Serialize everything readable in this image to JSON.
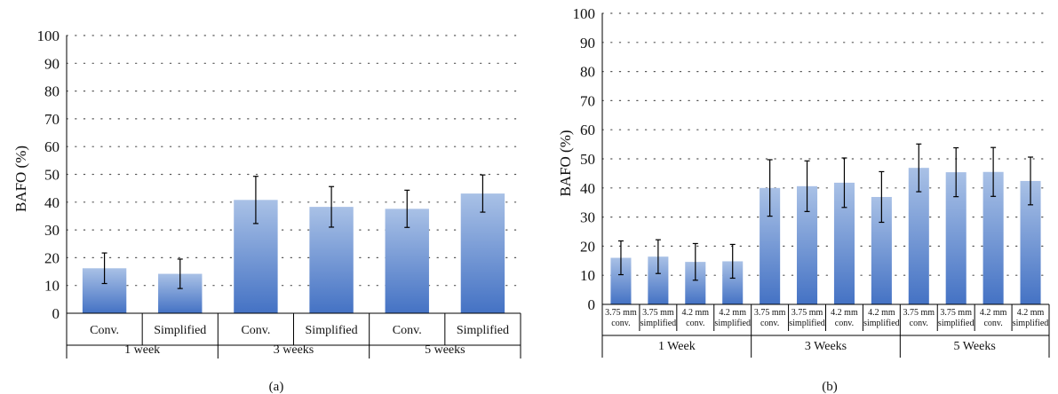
{
  "colors": {
    "bar_top": "#a9c1e6",
    "bar_bottom": "#4472c4",
    "axis": "#000000",
    "grid": "#555555"
  },
  "chart_data": [
    {
      "type": "bar",
      "panel_label": "(a)",
      "ylabel": "BAFO (%)",
      "ylim": [
        0,
        100
      ],
      "yticks": [
        0,
        10,
        20,
        30,
        40,
        50,
        60,
        70,
        80,
        90,
        100
      ],
      "grid": "dotted horizontal",
      "groups": [
        {
          "label": "1 week",
          "size": 2
        },
        {
          "label": "3 weeks",
          "size": 2
        },
        {
          "label": "5 weeks",
          "size": 2
        }
      ],
      "categories": [
        "Conv.",
        "Simplified",
        "Conv.",
        "Simplified",
        "Conv.",
        "Simplified"
      ],
      "values": [
        16.2,
        14.2,
        40.8,
        38.3,
        37.6,
        43.1
      ],
      "errors": [
        5.5,
        5.3,
        8.5,
        7.3,
        6.7,
        6.7
      ]
    },
    {
      "type": "bar",
      "panel_label": "(b)",
      "ylabel": "BAFO (%)",
      "ylim": [
        0,
        100
      ],
      "yticks": [
        0,
        10,
        20,
        30,
        40,
        50,
        60,
        70,
        80,
        90,
        100
      ],
      "grid": "dotted horizontal",
      "groups": [
        {
          "label": "1 Week",
          "size": 4
        },
        {
          "label": "3 Weeks",
          "size": 4
        },
        {
          "label": "5 Weeks",
          "size": 4
        }
      ],
      "categories": [
        [
          "3.75 mm",
          "conv."
        ],
        [
          "3.75 mm",
          "simplified"
        ],
        [
          "4.2 mm",
          "conv."
        ],
        [
          "4.2 mm",
          "simplified"
        ],
        [
          "3.75 mm",
          "conv."
        ],
        [
          "3.75 mm",
          "simplified"
        ],
        [
          "4.2 mm",
          "conv."
        ],
        [
          "4.2 mm",
          "simplified"
        ],
        [
          "3.75 mm",
          "conv."
        ],
        [
          "3.75 mm",
          "simplified"
        ],
        [
          "4.2 mm",
          "conv."
        ],
        [
          "4.2 mm",
          "simplified"
        ]
      ],
      "values": [
        16.0,
        16.4,
        14.6,
        14.8,
        40.0,
        40.6,
        41.8,
        36.9,
        46.9,
        45.4,
        45.5,
        42.4
      ],
      "errors": [
        5.8,
        5.8,
        6.3,
        5.8,
        9.7,
        8.7,
        8.5,
        8.7,
        8.2,
        8.4,
        8.4,
        8.2
      ]
    }
  ]
}
